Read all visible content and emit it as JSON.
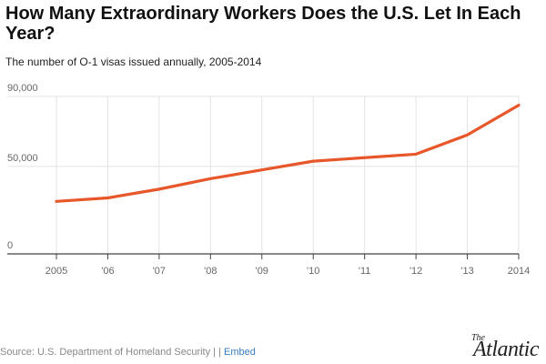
{
  "chart_data": {
    "type": "line",
    "title": "How Many Extraordinary Workers Does the U.S. Let In Each Year?",
    "subtitle": "The number of O-1 visas issued annually, 2005-2014",
    "categories": [
      "2005",
      "'06",
      "'07",
      "'08",
      "'09",
      "'10",
      "'11",
      "'12",
      "'13",
      "2014"
    ],
    "series": [
      {
        "values": [
          30000,
          32000,
          37000,
          43000,
          48000,
          53000,
          55000,
          57000,
          68000,
          85000
        ]
      }
    ],
    "ylim": [
      0,
      90000
    ],
    "yticks": [
      "0",
      "50,000",
      "90,000"
    ],
    "ytick_values": [
      0,
      50000,
      90000
    ],
    "grid": true,
    "line_color": "#E8572A"
  },
  "footer": {
    "source_text": "Source: U.S. Department of Homeland Security |",
    "separator": "|",
    "embed_label": "Embed"
  },
  "logo": {
    "the": "The",
    "name": "Atlantic"
  }
}
